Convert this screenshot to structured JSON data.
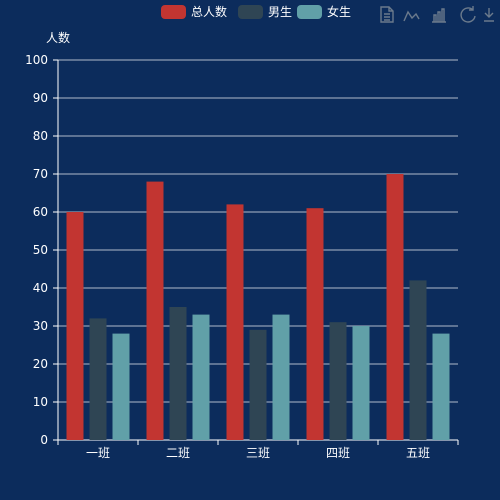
{
  "colors": {
    "background": "#0c2c5c",
    "series": [
      "#c23531",
      "#2f4554",
      "#61a0a8"
    ]
  },
  "toolbox": {
    "icons": [
      "data-view-icon",
      "line-chart-icon",
      "bar-chart-icon",
      "restore-icon",
      "save-image-icon"
    ]
  },
  "chart_data": {
    "type": "bar",
    "categories": [
      "一班",
      "二班",
      "三班",
      "四班",
      "五班"
    ],
    "series": [
      {
        "name": "总人数",
        "values": [
          60,
          68,
          62,
          61,
          70
        ]
      },
      {
        "name": "男生",
        "values": [
          32,
          35,
          29,
          31,
          42
        ]
      },
      {
        "name": "女生",
        "values": [
          28,
          33,
          33,
          30,
          28
        ]
      }
    ],
    "ylabel": "人数",
    "ylim": [
      0,
      100
    ],
    "yticks": [
      0,
      10,
      20,
      30,
      40,
      50,
      60,
      70,
      80,
      90,
      100
    ],
    "grid": true,
    "legend_position": "top"
  }
}
